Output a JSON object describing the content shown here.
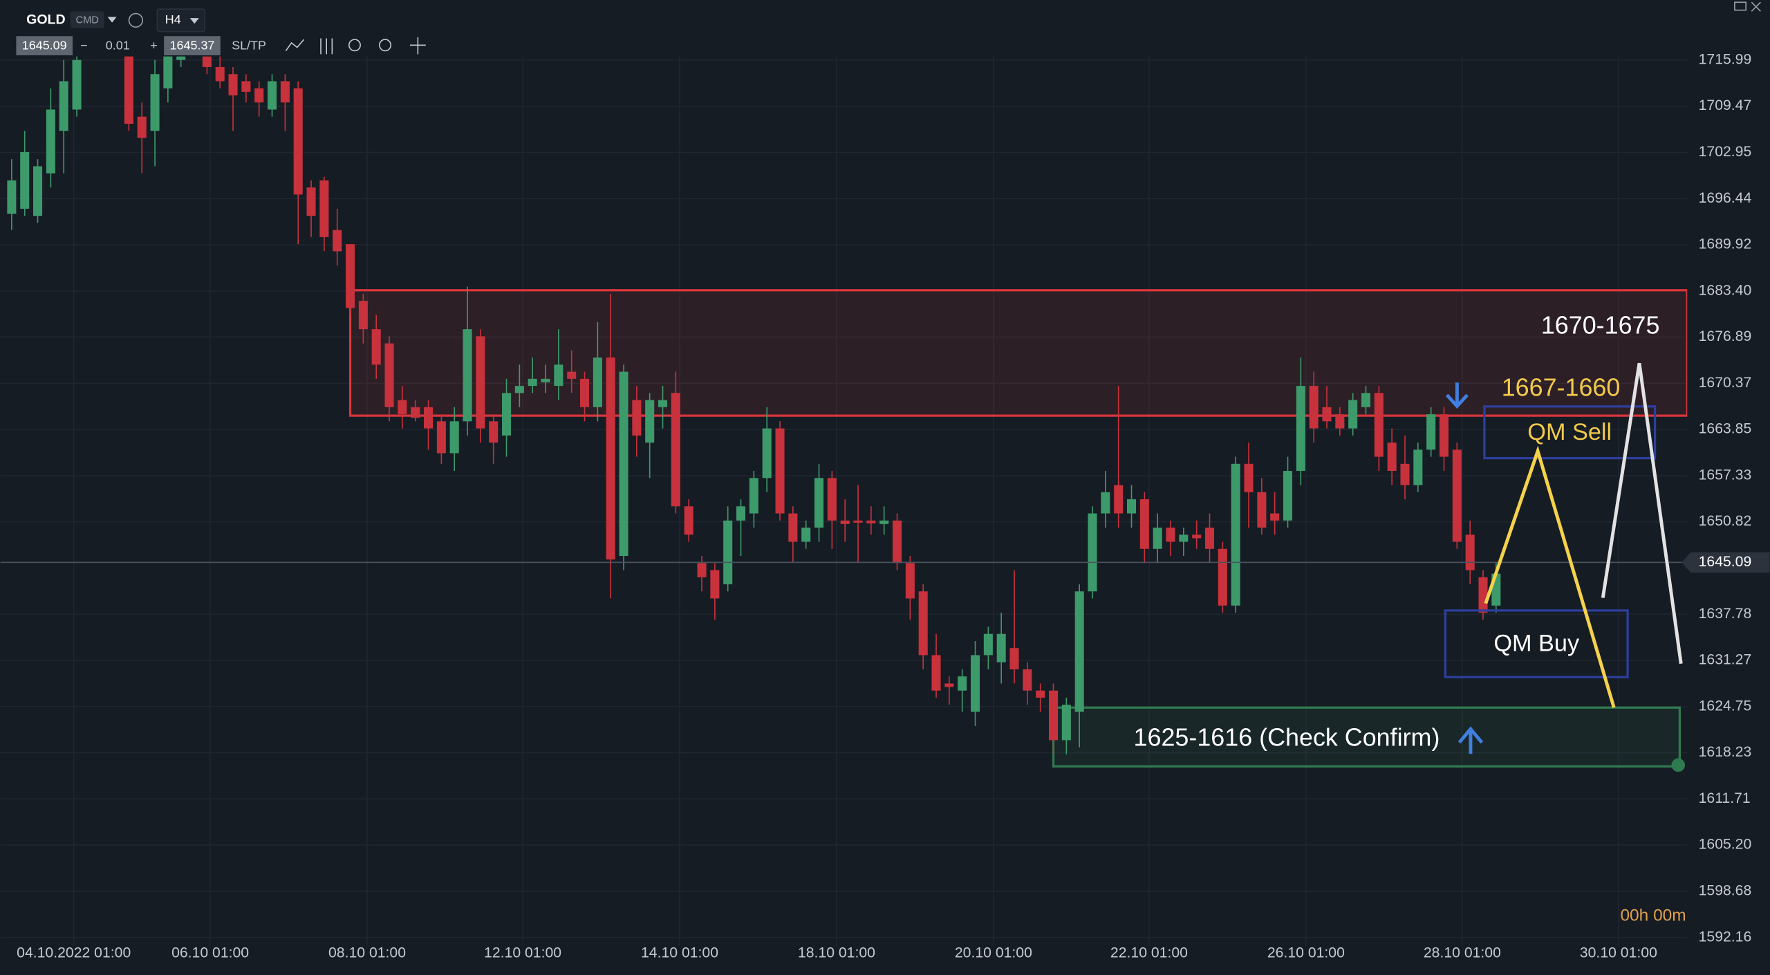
{
  "toolbar": {
    "symbol": "GOLD",
    "tag": "CMD",
    "timeframe": "H4",
    "bid": "1645.09",
    "minus": "−",
    "step": "0.01",
    "plus": "+",
    "ask": "1645.37",
    "sltp": "SL/TP"
  },
  "chart_data": {
    "type": "candlestick",
    "ohlc": [
      [
        1694.3,
        1702,
        1692,
        1699
      ],
      [
        1695,
        1706,
        1694,
        1703
      ],
      [
        1694,
        1702,
        1693,
        1701
      ],
      [
        1700,
        1712,
        1698,
        1709
      ],
      [
        1706,
        1716,
        1700,
        1713
      ],
      [
        1709,
        1717,
        1708,
        1716
      ],
      [
        1717,
        1722,
        1716.5,
        1720
      ],
      [
        1720,
        1724,
        1717,
        1722
      ],
      [
        1722,
        1724,
        1718,
        1719
      ],
      [
        1717,
        1718,
        1706,
        1707
      ],
      [
        1708,
        1710,
        1700,
        1705
      ],
      [
        1706,
        1716,
        1701,
        1714
      ],
      [
        1712,
        1718,
        1710,
        1717
      ],
      [
        1716,
        1718,
        1715,
        1716.5
      ],
      [
        1717,
        1720,
        1716.8,
        1719
      ],
      [
        1716.5,
        1718,
        1714,
        1715
      ],
      [
        1715,
        1717,
        1712,
        1713
      ],
      [
        1714,
        1715,
        1706,
        1711
      ],
      [
        1713,
        1714,
        1710,
        1711.5
      ],
      [
        1712,
        1713,
        1708,
        1710
      ],
      [
        1709,
        1714,
        1708,
        1713
      ],
      [
        1713,
        1714,
        1706,
        1710
      ],
      [
        1712,
        1713,
        1690,
        1697
      ],
      [
        1698,
        1699,
        1691,
        1694
      ],
      [
        1699,
        1699.5,
        1689,
        1691
      ],
      [
        1692,
        1695,
        1687,
        1689
      ],
      [
        1690,
        1690,
        1680,
        1681
      ],
      [
        1682,
        1683,
        1676,
        1678
      ],
      [
        1678,
        1680,
        1671,
        1673
      ],
      [
        1676,
        1677,
        1665,
        1667
      ],
      [
        1668,
        1670,
        1664,
        1666
      ],
      [
        1667,
        1668,
        1665,
        1665.5
      ],
      [
        1667,
        1668,
        1661,
        1664
      ],
      [
        1665,
        1666,
        1659,
        1660.5
      ],
      [
        1660.5,
        1667,
        1658,
        1665
      ],
      [
        1665,
        1684,
        1663,
        1678
      ],
      [
        1677,
        1678,
        1662,
        1664
      ],
      [
        1665,
        1666,
        1659,
        1662
      ],
      [
        1663,
        1671,
        1660,
        1669
      ],
      [
        1669,
        1673,
        1667,
        1670
      ],
      [
        1670,
        1674,
        1669,
        1671
      ],
      [
        1670.5,
        1673,
        1669,
        1671
      ],
      [
        1670,
        1678,
        1668,
        1673
      ],
      [
        1672,
        1675,
        1669,
        1671
      ],
      [
        1671,
        1672,
        1665,
        1667
      ],
      [
        1667,
        1679,
        1665,
        1674
      ],
      [
        1674,
        1683,
        1640,
        1645.5
      ],
      [
        1646,
        1673,
        1644,
        1672
      ],
      [
        1668,
        1670,
        1660,
        1663
      ],
      [
        1662,
        1669,
        1657,
        1668
      ],
      [
        1667,
        1670,
        1664,
        1668
      ],
      [
        1669,
        1672,
        1652,
        1653
      ],
      [
        1653,
        1654,
        1648,
        1649
      ],
      [
        1645,
        1646,
        1641,
        1643
      ],
      [
        1644,
        1645,
        1637,
        1640
      ],
      [
        1642,
        1653,
        1641,
        1651
      ],
      [
        1651,
        1654,
        1646,
        1653
      ],
      [
        1652,
        1658,
        1650,
        1657
      ],
      [
        1657,
        1667,
        1655,
        1664
      ],
      [
        1664,
        1665,
        1651,
        1652
      ],
      [
        1652,
        1653,
        1645,
        1648
      ],
      [
        1648,
        1651,
        1647,
        1650
      ],
      [
        1650,
        1659,
        1648,
        1657
      ],
      [
        1657,
        1658,
        1647,
        1651
      ],
      [
        1651,
        1654,
        1648,
        1650.5
      ],
      [
        1651,
        1656,
        1645,
        1650.7
      ],
      [
        1651,
        1653,
        1649,
        1650.6
      ],
      [
        1650.5,
        1653,
        1649,
        1651
      ],
      [
        1651,
        1652,
        1644,
        1645
      ],
      [
        1645,
        1646,
        1637,
        1640
      ],
      [
        1641,
        1642,
        1630,
        1632
      ],
      [
        1632,
        1635,
        1626,
        1627
      ],
      [
        1628,
        1629,
        1625,
        1627.5
      ],
      [
        1627,
        1630,
        1624,
        1629
      ],
      [
        1624,
        1634,
        1622,
        1632
      ],
      [
        1632,
        1636,
        1630,
        1635
      ],
      [
        1631,
        1638,
        1628,
        1635
      ],
      [
        1633,
        1644,
        1628,
        1630
      ],
      [
        1630,
        1631,
        1625,
        1627
      ],
      [
        1627,
        1628,
        1624,
        1626
      ],
      [
        1627,
        1628,
        1618,
        1620
      ],
      [
        1620,
        1626,
        1618,
        1625
      ],
      [
        1624,
        1642,
        1619,
        1641
      ],
      [
        1641,
        1653,
        1640,
        1652
      ],
      [
        1652,
        1658,
        1650,
        1655
      ],
      [
        1656,
        1670,
        1650,
        1652
      ],
      [
        1652,
        1656,
        1650,
        1654
      ],
      [
        1654,
        1655,
        1645,
        1647
      ],
      [
        1647,
        1652,
        1645,
        1650
      ],
      [
        1650,
        1651,
        1646,
        1648
      ],
      [
        1648,
        1650,
        1646,
        1649
      ],
      [
        1649,
        1651,
        1647,
        1648.5
      ],
      [
        1650,
        1652,
        1645,
        1647
      ],
      [
        1647,
        1648,
        1638,
        1639
      ],
      [
        1639,
        1660,
        1638,
        1659
      ],
      [
        1659,
        1662,
        1650,
        1655
      ],
      [
        1655,
        1657,
        1649,
        1650
      ],
      [
        1652,
        1655,
        1649,
        1651
      ],
      [
        1651,
        1660,
        1650,
        1658
      ],
      [
        1658,
        1674,
        1656,
        1670
      ],
      [
        1670,
        1672,
        1662,
        1664
      ],
      [
        1667,
        1670,
        1664,
        1665
      ],
      [
        1666,
        1667,
        1663,
        1664
      ],
      [
        1664,
        1669,
        1663,
        1668
      ],
      [
        1667,
        1670,
        1666,
        1669
      ],
      [
        1669,
        1670,
        1658,
        1660
      ],
      [
        1662,
        1664,
        1656,
        1658
      ],
      [
        1659,
        1663,
        1654,
        1656
      ],
      [
        1656,
        1662,
        1655,
        1661
      ],
      [
        1661,
        1667,
        1660,
        1666
      ],
      [
        1666,
        1667,
        1658,
        1660
      ],
      [
        1661,
        1662,
        1647,
        1648
      ],
      [
        1649,
        1651,
        1642,
        1644
      ],
      [
        1643,
        1644,
        1637,
        1638
      ],
      [
        1639,
        1645,
        1638,
        1643.5
      ]
    ],
    "up_color": "#3d9a6b",
    "down_color": "#c8323c",
    "xlim": [
      -0.867,
      128.68
    ],
    "ylim": [
      1591.0,
      1716.5
    ],
    "xticks": [
      {
        "value": 4.77,
        "label": "04.10.2022 01:00"
      },
      {
        "value": 15.25,
        "label": "06.10 01:00"
      },
      {
        "value": 27.3,
        "label": "08.10 01:00"
      },
      {
        "value": 39.25,
        "label": "12.10 01:00"
      },
      {
        "value": 51.3,
        "label": "14.10 01:00"
      },
      {
        "value": 63.35,
        "label": "18.10 01:00"
      },
      {
        "value": 75.4,
        "label": "20.10 01:00"
      },
      {
        "value": 87.35,
        "label": "22.10 01:00"
      },
      {
        "value": 99.4,
        "label": "26.10 01:00"
      },
      {
        "value": 111.4,
        "label": "28.10 01:00"
      },
      {
        "value": 123.4,
        "label": "30.10 01:00"
      }
    ],
    "yticks": [
      1715.99,
      1709.47,
      1702.95,
      1696.44,
      1689.92,
      {
        "value": 1683.4,
        "label": "1683.40"
      },
      1676.89,
      1670.37,
      1663.85,
      1657.33,
      1650.82,
      1637.78,
      1631.27,
      1624.75,
      1618.23,
      1611.71,
      {
        "value": 1605.2,
        "label": "1605.20"
      },
      1598.68,
      1592.16
    ],
    "grid": true,
    "current_price": 1645.09,
    "zones": [
      {
        "from": 26.0,
        "to": 128.68,
        "low": 1665.8,
        "high": 1683.5,
        "color": "#d8363c"
      },
      {
        "from": 80.0,
        "to": 128.1,
        "low": 1616.3,
        "high": 1624.6,
        "color": "#2f7a4f"
      }
    ],
    "boxes": [
      {
        "label": "QM Sell",
        "from": 113.1,
        "to": 126.2,
        "low": 1659.8,
        "high": 1667.1,
        "color": "#2d3f9e",
        "text_color": "#f2c94c"
      },
      {
        "label": "QM Buy",
        "from": 110.1,
        "to": 124.1,
        "low": 1628.9,
        "high": 1638.3,
        "color": "#2d3f9e",
        "text_color": "#ffffff"
      }
    ],
    "paths": [
      {
        "color": "#f5d24b",
        "x": [
          113.2,
          117.2,
          123.05
        ],
        "y": [
          1639.3,
          1660.8,
          1624.6
        ]
      },
      {
        "color": "#e3e3e3",
        "x": [
          122.2,
          125.0,
          128.2
        ],
        "y": [
          1640.1,
          1673.2,
          1630.8
        ]
      }
    ],
    "annotations": [
      {
        "text": "1670-1675",
        "color": "#ffffff"
      },
      {
        "text": "1667-1660",
        "color": "#f2c94c"
      },
      {
        "text": "1625-1616 (Check Confirm)",
        "color": "#ffffff"
      }
    ],
    "countdown": "00h 00m"
  }
}
